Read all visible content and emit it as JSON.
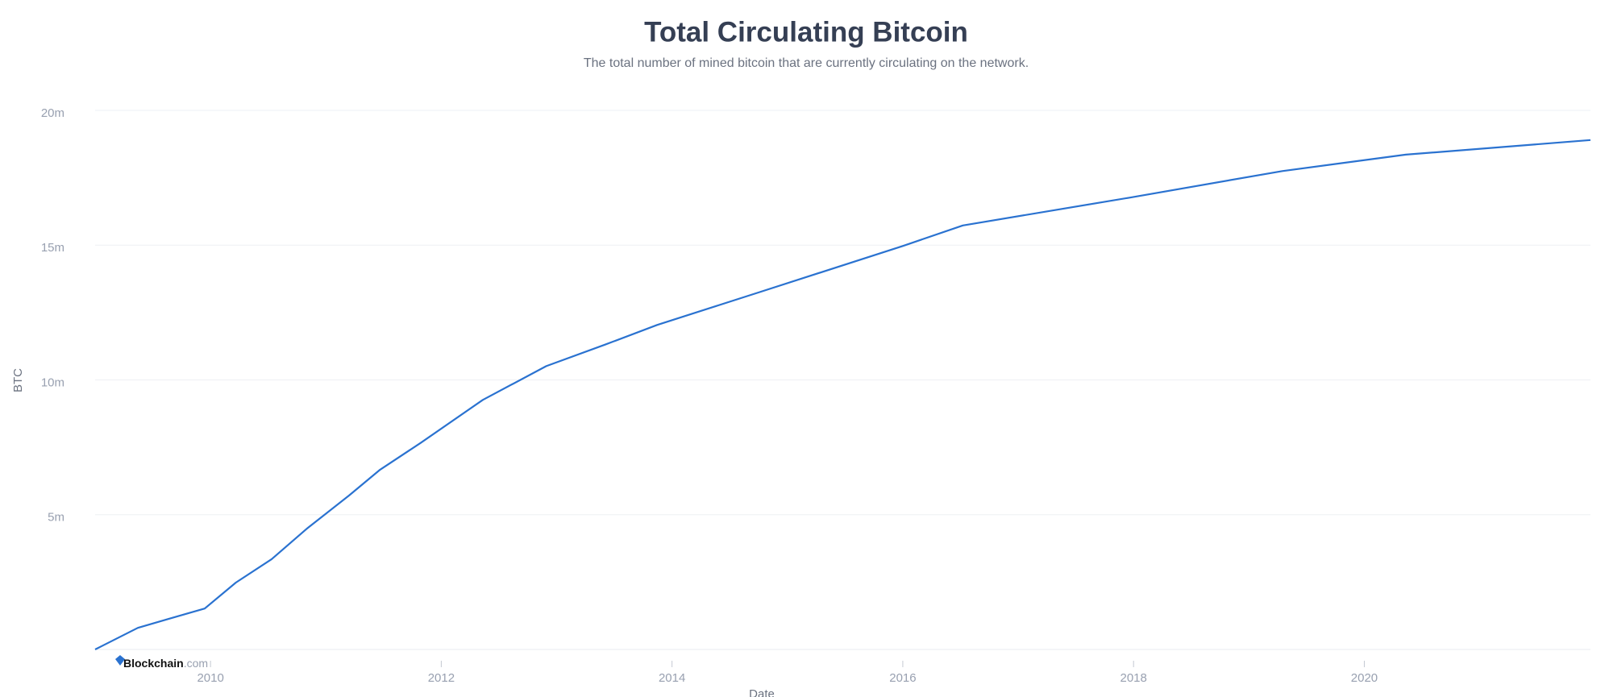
{
  "chart_data": {
    "type": "line",
    "title": "Total Circulating Bitcoin",
    "subtitle": "The total number of mined bitcoin that are currently circulating on the network.",
    "x_label": "Date",
    "y_label": "BTC",
    "x": [
      2009.0,
      2009.37,
      2009.64,
      2009.95,
      2010.22,
      2010.53,
      2010.84,
      2011.2,
      2011.47,
      2011.82,
      2012.36,
      2012.91,
      2013.42,
      2013.87,
      2014.76,
      2016.0,
      2016.52,
      2017.96,
      2019.29,
      2020.36,
      2021.96
    ],
    "values": [
      0,
      800000,
      1140000,
      1520000,
      2480000,
      3350000,
      4500000,
      5710000,
      6670000,
      7660000,
      9260000,
      10510000,
      11310000,
      12040000,
      13260000,
      14970000,
      15730000,
      16760000,
      17750000,
      18360000,
      18900000
    ],
    "color": "#2a72d0",
    "xlim": [
      2009.0,
      2021.96
    ],
    "xticks": [
      2010,
      2012,
      2014,
      2016,
      2018,
      2020
    ],
    "ylim": [
      0,
      20000000
    ],
    "yticks": [
      {
        "value": 5000000,
        "label": "5m"
      },
      {
        "value": 10000000,
        "label": "10m"
      },
      {
        "value": 15000000,
        "label": "15m"
      },
      {
        "value": 20000000,
        "label": "20m"
      }
    ],
    "grid": true,
    "watermark": {
      "brand": "Blockchain",
      "suffix": ".com"
    }
  }
}
